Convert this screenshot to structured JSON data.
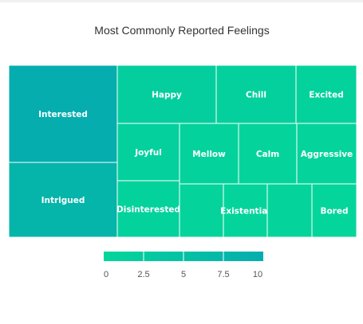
{
  "chart_data": {
    "type": "treemap",
    "title": "Most Commonly Reported Feelings",
    "items": [
      {
        "name": "Interested",
        "value": 10
      },
      {
        "name": "Intrigued",
        "value": 8
      },
      {
        "name": "Happy",
        "value": 2
      },
      {
        "name": "Chill",
        "value": 1.5
      },
      {
        "name": "Excited",
        "value": 1
      },
      {
        "name": "Joyful",
        "value": 1.5
      },
      {
        "name": "Mellow",
        "value": 1
      },
      {
        "name": "Calm",
        "value": 0.5
      },
      {
        "name": "Aggressive",
        "value": 0.5
      },
      {
        "name": "Disinterested",
        "value": 1
      },
      {
        "name": "",
        "value": 0.5
      },
      {
        "name": "Existential",
        "value": 0.5
      },
      {
        "name": "",
        "value": 0.5
      },
      {
        "name": "Bored",
        "value": 0.3
      }
    ],
    "color_scale": {
      "min": 0,
      "max": 10,
      "ticks": [
        "0",
        "2.5",
        "5",
        "7.5",
        "10"
      ],
      "low_color": "#04d69a",
      "high_color": "#05adae"
    }
  }
}
